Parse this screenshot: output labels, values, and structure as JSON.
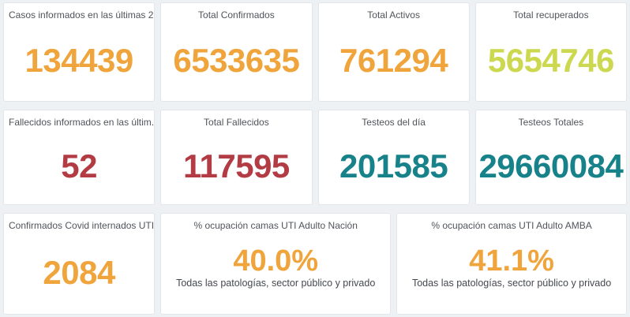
{
  "dashboard": {
    "background_color": "#eef1f4",
    "card_background": "#ffffff",
    "colors": {
      "orange": "#f0a43c",
      "green": "#cbd850",
      "red": "#b23b44",
      "teal": "#17828a"
    },
    "cards": [
      {
        "title": "Casos informados en las últimas 2...",
        "value": "134439",
        "color": "#f0a43c"
      },
      {
        "title": "Total Confirmados",
        "value": "6533635",
        "color": "#f0a43c"
      },
      {
        "title": "Total Activos",
        "value": "761294",
        "color": "#f0a43c"
      },
      {
        "title": "Total recuperados",
        "value": "5654746",
        "color": "#cbd850"
      },
      {
        "title": "Fallecidos informados en las últim...",
        "value": "52",
        "color": "#b23b44"
      },
      {
        "title": "Total Fallecidos",
        "value": "117595",
        "color": "#b23b44"
      },
      {
        "title": "Testeos del día",
        "value": "201585",
        "color": "#17828a"
      },
      {
        "title": "Testeos Totales",
        "value": "29660084",
        "color": "#17828a"
      },
      {
        "title": "Confirmados Covid internados UTI",
        "value": "2084",
        "color": "#f0a43c"
      },
      {
        "title": "% ocupación camas UTI Adulto Nación",
        "value": "40.0%",
        "subtitle": "Todas las patologías, sector público y privado",
        "color": "#f0a43c"
      },
      {
        "title": "% ocupación camas UTI Adulto AMBA",
        "value": "41.1%",
        "subtitle": "Todas las patologías, sector público y privado",
        "color": "#f0a43c"
      }
    ]
  }
}
